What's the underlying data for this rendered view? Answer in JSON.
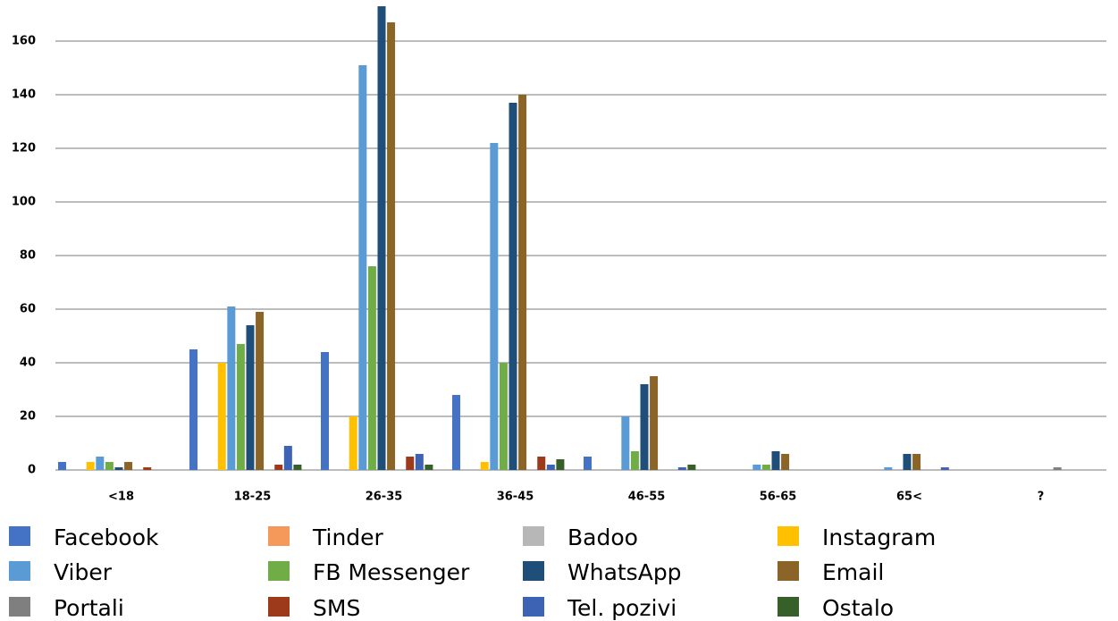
{
  "chart_data": {
    "type": "bar",
    "categories": [
      "<18",
      "18-25",
      "26-35",
      "36-45",
      "46-55",
      "56-65",
      "65<",
      "?"
    ],
    "series": [
      {
        "name": "Facebook",
        "color": "#4472c4",
        "values": [
          3,
          45,
          44,
          28,
          5,
          0,
          0,
          0
        ]
      },
      {
        "name": "Tinder",
        "color": "#f4995a",
        "values": [
          0,
          0,
          0,
          0,
          0,
          0,
          0,
          0
        ]
      },
      {
        "name": "Badoo",
        "color": "#b7b7b7",
        "values": [
          0,
          0,
          0,
          0,
          0,
          0,
          0,
          0
        ]
      },
      {
        "name": "Instagram",
        "color": "#ffc000",
        "values": [
          3,
          40,
          20,
          3,
          0,
          0,
          0,
          0
        ]
      },
      {
        "name": "Viber",
        "color": "#5b9bd5",
        "values": [
          5,
          61,
          151,
          122,
          20,
          2,
          1,
          0
        ]
      },
      {
        "name": "FB Messenger",
        "color": "#70ad47",
        "values": [
          3,
          47,
          76,
          40,
          7,
          2,
          0,
          0
        ]
      },
      {
        "name": "WhatsApp",
        "color": "#1f4e79",
        "values": [
          1,
          54,
          173,
          137,
          32,
          7,
          6,
          0
        ]
      },
      {
        "name": "Email",
        "color": "#8b6428",
        "values": [
          3,
          59,
          167,
          140,
          35,
          6,
          6,
          0
        ]
      },
      {
        "name": "Portali",
        "color": "#7f7f7f",
        "values": [
          0,
          0,
          0,
          0,
          0,
          0,
          0,
          1
        ]
      },
      {
        "name": "SMS",
        "color": "#9e3a1c",
        "values": [
          1,
          2,
          5,
          5,
          0,
          0,
          0,
          0
        ]
      },
      {
        "name": "Tel. pozivi",
        "color": "#3d63b5",
        "values": [
          0,
          9,
          6,
          2,
          1,
          0,
          1,
          0
        ]
      },
      {
        "name": "Ostalo",
        "color": "#375f2a",
        "values": [
          0,
          2,
          2,
          4,
          2,
          0,
          0,
          0
        ]
      }
    ],
    "ylim": [
      0,
      175
    ],
    "yticks": [
      0,
      20,
      40,
      60,
      80,
      100,
      120,
      140,
      160
    ],
    "grid": true
  }
}
